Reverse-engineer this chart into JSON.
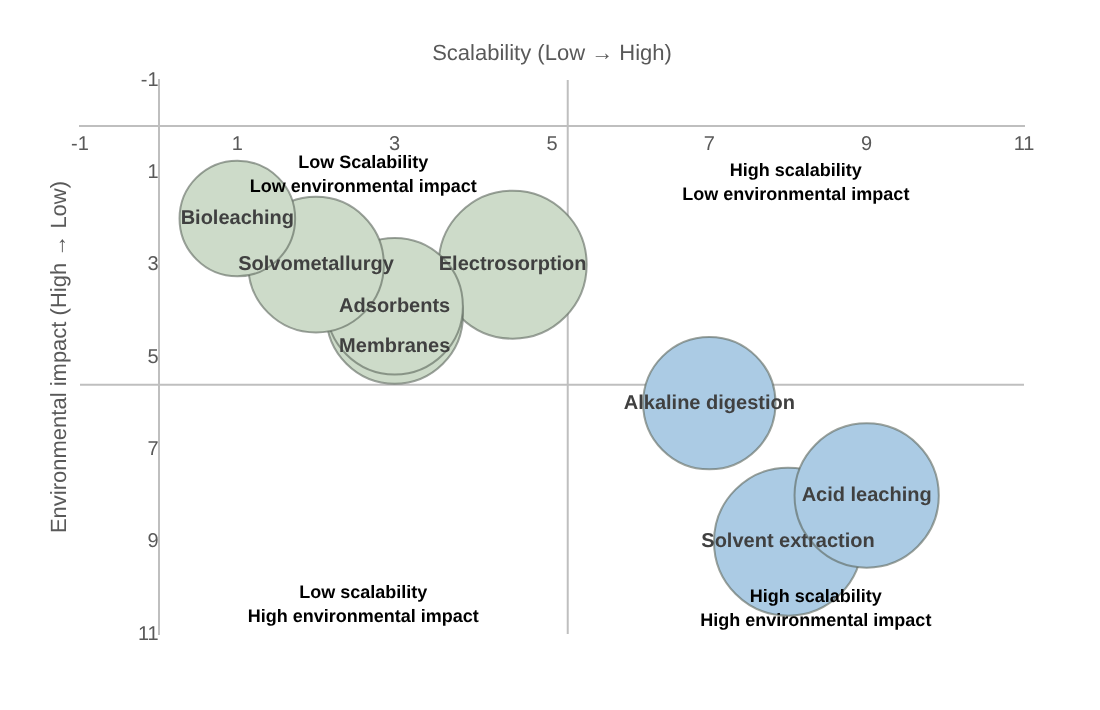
{
  "chart_data": {
    "type": "bubble",
    "xlabel": "Scalability (Low → High)",
    "ylabel": "Environmental impact (High → Low)",
    "xlim": [
      -1,
      11
    ],
    "xticks": [
      -1,
      1,
      3,
      5,
      7,
      9,
      11
    ],
    "ylim": [
      11,
      -1
    ],
    "yticks": [
      -1,
      1,
      3,
      5,
      7,
      9,
      11
    ],
    "grid": false,
    "legend": false,
    "series": [
      {
        "name": "Bioleaching",
        "color": "#cddbc9",
        "x": [
          1
        ],
        "values": [
          2
        ],
        "sizes": [
          0.61
        ]
      },
      {
        "name": "Solvometallurgy",
        "color": "#cddbc9",
        "x": [
          2
        ],
        "values": [
          3
        ],
        "sizes": [
          0.84
        ]
      },
      {
        "name": "Adsorbents",
        "color": "#cddbc9",
        "x": [
          3
        ],
        "values": [
          3.9
        ],
        "sizes": [
          0.85
        ]
      },
      {
        "name": "Membranes",
        "color": "#cddbc9",
        "x": [
          3
        ],
        "values": [
          4.1
        ],
        "sizes": [
          0.85
        ]
      },
      {
        "name": "Electrosorption",
        "color": "#cddbc9",
        "x": [
          4.5
        ],
        "values": [
          3
        ],
        "sizes": [
          1
        ]
      },
      {
        "name": "Alkaline digestion",
        "color": "#abcbe4",
        "x": [
          7
        ],
        "values": [
          6
        ],
        "sizes": [
          0.8
        ]
      },
      {
        "name": "Acid leaching",
        "color": "#abcbe4",
        "x": [
          9
        ],
        "values": [
          8
        ],
        "sizes": [
          0.95
        ]
      },
      {
        "name": "Solvent extraction",
        "color": "#abcbe4",
        "x": [
          8
        ],
        "values": [
          9
        ],
        "sizes": [
          1
        ]
      }
    ],
    "ref_lines": [
      {
        "axis": "x",
        "value": 5.2,
        "color": "#bfbfbf"
      },
      {
        "axis": "y",
        "value": 5.6,
        "color": "#bfbfbf"
      }
    ],
    "annotations": [
      "Low Scalability\nLow environmental impact",
      "High scalability\nLow environmental impact",
      "Low scalability\nHigh environmental impact",
      "High scalability\nHigh environmental impact"
    ]
  }
}
